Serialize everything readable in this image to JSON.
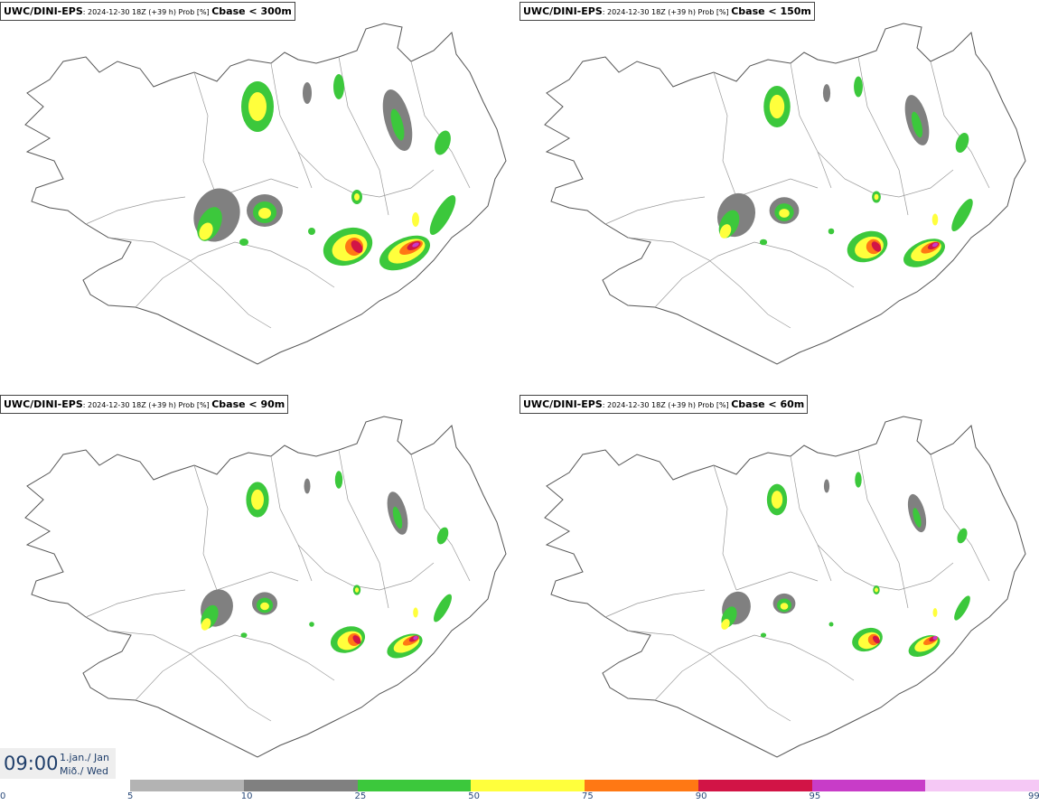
{
  "panels": [
    {
      "model": "UWC/DINI-EPS",
      "meta": ": 2024-12-30 18Z (+39 h) Prob [%]",
      "variable": "Cbase < 300m",
      "scale": 1.0
    },
    {
      "model": "UWC/DINI-EPS",
      "meta": ": 2024-12-30 18Z (+39 h) Prob [%]",
      "variable": "Cbase < 150m",
      "scale": 0.82
    },
    {
      "model": "UWC/DINI-EPS",
      "meta": ": 2024-12-30 18Z (+39 h) Prob [%]",
      "variable": "Cbase < 90m",
      "scale": 0.7
    },
    {
      "model": "UWC/DINI-EPS",
      "meta": ": 2024-12-30 18Z (+39 h) Prob [%]",
      "variable": "Cbase < 60m",
      "scale": 0.62
    }
  ],
  "valid_time": {
    "hour": "09:00",
    "date_line1": "1.jan./ Jan",
    "date_line2": "Mið./ Wed"
  },
  "legend": {
    "ticks": [
      "0",
      "5",
      "10",
      "25",
      "50",
      "75",
      "90",
      "95",
      "99"
    ],
    "colors": [
      "#b3b3b3",
      "#808080",
      "#3cc83c",
      "#ffff3c",
      "#ff7814",
      "#d21446",
      "#c83cc8",
      "#f5c8f5"
    ]
  },
  "colors": {
    "coast": "#555555",
    "gray_light": "#b3b3b3",
    "gray_dark": "#808080",
    "green": "#3cc83c",
    "yellow": "#ffff3c",
    "orange": "#ff7814",
    "red": "#d21446",
    "magenta": "#c83cc8",
    "pink": "#f5c8f5"
  }
}
